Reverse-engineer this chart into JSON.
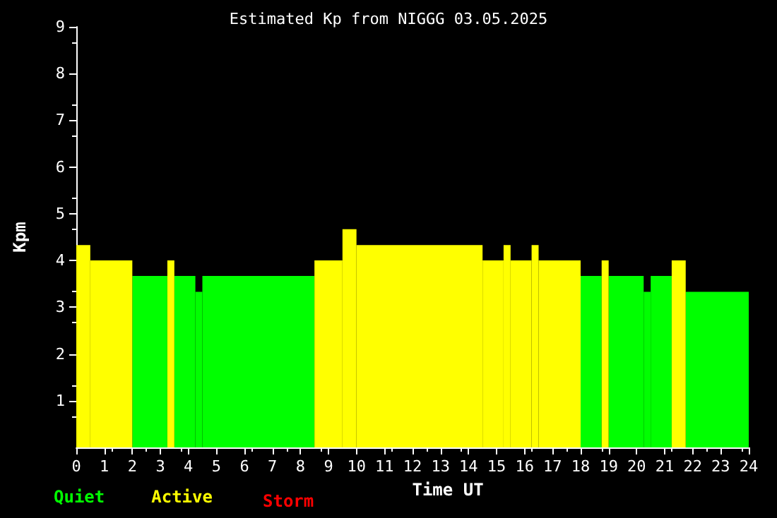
{
  "chart_data": {
    "type": "histogram",
    "title": "Estimated Kp from NIGGG 03.05.2025",
    "xlabel": "Time UT",
    "ylabel": "Kpm",
    "bins": [
      0,
      0.5,
      2,
      3.25,
      3.5,
      4.25,
      4.5,
      8.5,
      9.5,
      10,
      14.5,
      15.25,
      15.5,
      16.25,
      16.5,
      18,
      18.75,
      19,
      20.25,
      20.5,
      21.25,
      21.75,
      24
    ],
    "series": [
      {
        "name": "Quiet",
        "color": "#00ff00",
        "values": [
          null,
          null,
          3.67,
          null,
          3.67,
          3.33,
          3.67,
          null,
          null,
          null,
          null,
          null,
          null,
          null,
          null,
          3.67,
          null,
          3.67,
          3.33,
          3.67,
          null,
          3.33
        ]
      },
      {
        "name": "Active",
        "color": "#ffff00",
        "values": [
          4.33,
          4,
          null,
          4,
          null,
          null,
          null,
          4,
          4.67,
          4.33,
          4,
          4.33,
          4,
          4.33,
          4,
          null,
          4,
          null,
          null,
          null,
          4,
          null
        ]
      }
    ],
    "annotations": [
      "Storm"
    ],
    "xlim": [
      0,
      24
    ],
    "xticks": [
      0,
      1,
      2,
      3,
      4,
      5,
      6,
      7,
      8,
      9,
      10,
      11,
      12,
      13,
      14,
      15,
      16,
      17,
      18,
      19,
      20,
      21,
      22,
      23,
      24
    ],
    "ylim": [
      0,
      9
    ],
    "yticks": [
      1,
      2,
      3,
      4,
      5,
      6,
      7,
      8,
      9
    ],
    "grid": false,
    "legend": "bottom left"
  }
}
